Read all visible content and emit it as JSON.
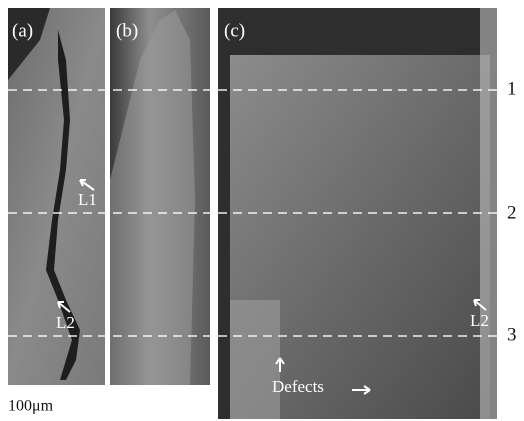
{
  "panels": [
    {
      "label": "(a)"
    },
    {
      "label": "(b)"
    },
    {
      "label": "(c)"
    }
  ],
  "annotations": {
    "a_l1": "L1",
    "a_l2": "L2",
    "c_l2": "L2",
    "c_defects": "Defects"
  },
  "row_labels": [
    "1",
    "2",
    "3"
  ],
  "scale_bar": "100μm"
}
